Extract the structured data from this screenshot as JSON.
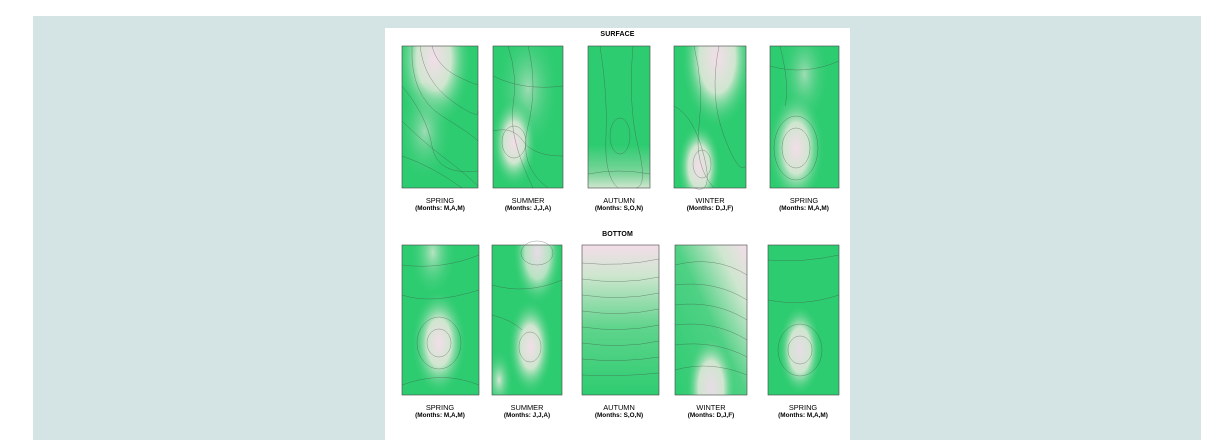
{
  "figure": {
    "surface_title": "SURFACE",
    "bottom_title": "BOTTOM",
    "surface_panels": [
      {
        "season": "SPRING",
        "months": "(Months: M,A,M)"
      },
      {
        "season": "SUMMER",
        "months": "(Months: J,J,A)"
      },
      {
        "season": "AUTUMN",
        "months": "(Months: S,O,N)"
      },
      {
        "season": "WINTER",
        "months": "(Months: D,J,F)"
      },
      {
        "season": "SPRING",
        "months": "(Months: M,A,M)"
      }
    ],
    "bottom_panels": [
      {
        "season": "SPRING",
        "months": "(Months: M,A,M)"
      },
      {
        "season": "SUMMER",
        "months": "(Months: J,J,A)"
      },
      {
        "season": "AUTUMN",
        "months": "(Months: S,O,N)"
      },
      {
        "season": "WINTER",
        "months": "(Months: D,J,F)"
      },
      {
        "season": "SPRING",
        "months": "(Months: M,A,M)"
      }
    ]
  },
  "colors": {
    "panel_background": "#d4e3e3",
    "contour_low": "#2ecc71",
    "contour_mid": "#cfe6cf",
    "contour_high": "#f1d7e6",
    "contour_line": "#3d4a3d"
  }
}
